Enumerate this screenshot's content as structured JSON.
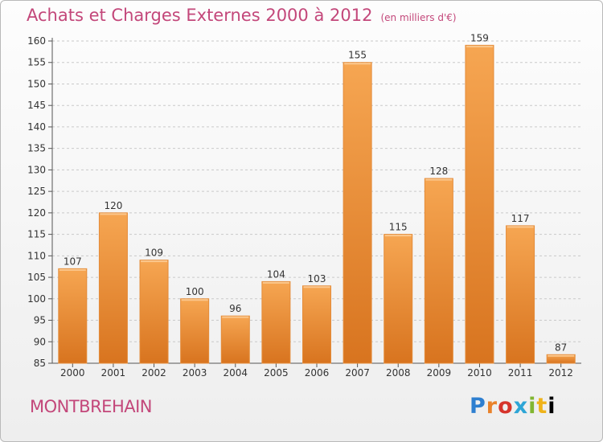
{
  "chart_data": {
    "type": "bar",
    "title": "Achats et Charges Externes 2000 à 2012",
    "subtitle": "(en milliers d'€)",
    "categories": [
      "2000",
      "2001",
      "2002",
      "2003",
      "2004",
      "2005",
      "2006",
      "2007",
      "2008",
      "2009",
      "2010",
      "2011",
      "2012"
    ],
    "values": [
      107,
      120,
      109,
      100,
      96,
      104,
      103,
      155,
      115,
      128,
      159,
      117,
      87
    ],
    "ylim": [
      85,
      160
    ],
    "yticks": [
      85,
      90,
      95,
      100,
      105,
      110,
      115,
      120,
      125,
      130,
      135,
      140,
      145,
      150,
      155,
      160
    ],
    "xlabel": "",
    "ylabel": "",
    "grid": true,
    "bar_color_top": "#f6a652",
    "bar_color_bottom": "#d8741f",
    "title_color": "#c3477a"
  },
  "place_name": "MONTBREHAIN",
  "logo_text": "Proxiti"
}
